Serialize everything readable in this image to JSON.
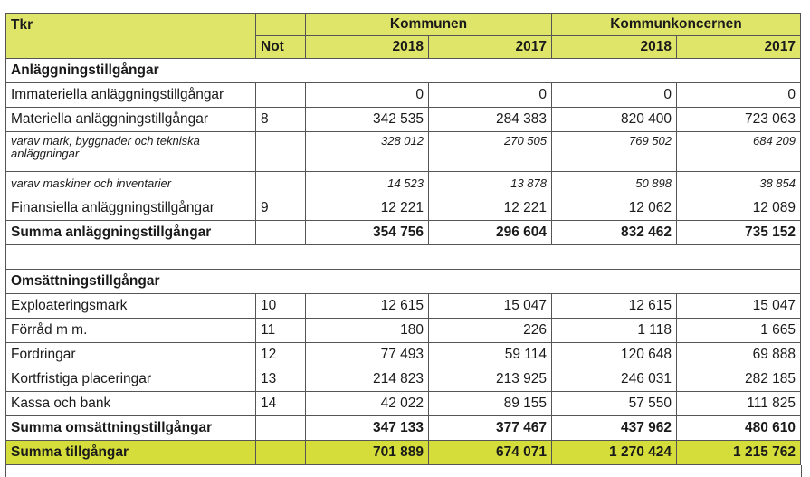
{
  "header": {
    "tkr": "Tkr",
    "not": "Not",
    "group_kommunen": "Kommunen",
    "group_koncern": "Kommunkoncernen",
    "years": [
      "2018",
      "2017",
      "2018",
      "2017"
    ]
  },
  "sections": {
    "anlaggning": "Anläggningstillgångar",
    "omsattning": "Omsättningstillgångar"
  },
  "rows": {
    "immateriella": {
      "label": "Immateriella anläggningstillgångar",
      "not": "",
      "v": [
        "0",
        "0",
        "0",
        "0"
      ]
    },
    "materiella": {
      "label": "Materiella anläggningstillgångar",
      "not": "8",
      "v": [
        "342 535",
        "284 383",
        "820 400",
        "723 063"
      ]
    },
    "varav_mark": {
      "label": "varav mark, byggnader och tekniska anläggningar",
      "not": "",
      "v": [
        "328 012",
        "270 505",
        "769 502",
        "684 209"
      ]
    },
    "varav_maskiner": {
      "label": "varav maskiner och inventarier",
      "not": "",
      "v": [
        "14 523",
        "13 878",
        "50 898",
        "38 854"
      ]
    },
    "finansiella": {
      "label": "Finansiella anläggningstillgångar",
      "not": "9",
      "v": [
        "12 221",
        "12 221",
        "12 062",
        "12 089"
      ]
    },
    "summa_anl": {
      "label": "Summa anläggningstillgångar",
      "not": "",
      "v": [
        "354 756",
        "296 604",
        "832 462",
        "735 152"
      ]
    },
    "exploatering": {
      "label": "Exploateringsmark",
      "not": "10",
      "v": [
        "12 615",
        "15 047",
        "12 615",
        "15 047"
      ]
    },
    "forrad": {
      "label": "Förråd m m.",
      "not": "11",
      "v": [
        "180",
        "226",
        "1 118",
        "1 665"
      ]
    },
    "fordringar": {
      "label": "Fordringar",
      "not": "12",
      "v": [
        "77 493",
        "59 114",
        "120 648",
        "69 888"
      ]
    },
    "kortfristiga": {
      "label": "Kortfristiga placeringar",
      "not": "13",
      "v": [
        "214 823",
        "213 925",
        "246 031",
        "282 185"
      ]
    },
    "kassa": {
      "label": "Kassa och bank",
      "not": "14",
      "v": [
        "42 022",
        "89 155",
        "57 550",
        "111 825"
      ]
    },
    "summa_oms": {
      "label": "Summa omsättningstillgångar",
      "not": "",
      "v": [
        "347 133",
        "377 467",
        "437 962",
        "480 610"
      ]
    },
    "summa_tillg": {
      "label": "Summa tillgångar",
      "not": "",
      "v": [
        "701 889",
        "674 071",
        "1 270 424",
        "1 215 762"
      ]
    }
  },
  "colors": {
    "header_bg": "#dfe568",
    "total_bg": "#d4dd3a",
    "border": "#555555"
  }
}
